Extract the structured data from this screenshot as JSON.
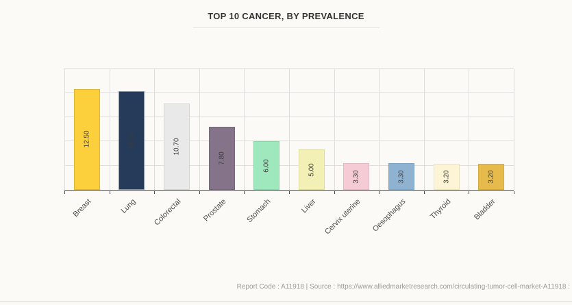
{
  "header": {
    "title": "TOP 10 CANCER, BY PREVALENCE"
  },
  "footer": {
    "text": "Report Code : A11918  |  Source : https://www.alliedmarketresearch.com/circulating-tumor-cell-market-A11918 :"
  },
  "colors": {
    "background": "#FBFAF6",
    "grid": "#DEDEDE",
    "axis": "#4A4A4A",
    "title_text": "#333333",
    "footer_text": "#9B9B9B"
  },
  "chart_data": {
    "type": "bar",
    "title": "TOP 10 CANCER, BY PREVALENCE",
    "xlabel": "",
    "ylabel": "",
    "categories": [
      "Breast",
      "Lung",
      "Colorectal",
      "Prostate",
      "Stomach",
      "Liver",
      "Cervix uterine",
      "Oesophagus",
      "Thyroid",
      "Bladder"
    ],
    "values": [
      12.5,
      12.2,
      10.7,
      7.8,
      6.0,
      5.0,
      3.3,
      3.3,
      3.2,
      3.2
    ],
    "value_labels": [
      "12.50",
      "12.20",
      "10.70",
      "7.80",
      "6.00",
      "5.00",
      "3.30",
      "3.30",
      "3.20",
      "3.20"
    ],
    "bar_colors": [
      "#FCD03C",
      "#263A59",
      "#E9E9E9",
      "#857389",
      "#9FE8BD",
      "#F2F0B4",
      "#F5CBD6",
      "#8FB2D1",
      "#FCF4D5",
      "#E6BB4B"
    ],
    "bar_border_colors": [
      "#DDB634",
      "#8593A9",
      "#D6D6D6",
      "#77667B",
      "#8CD3AA",
      "#DEDCA0",
      "#E3B9C4",
      "#7FA3C2",
      "#EAE2BF",
      "#D3A93F"
    ],
    "ylim": [
      0,
      15
    ],
    "y_gridlines": [
      3,
      6,
      9,
      12,
      15
    ],
    "grid": true,
    "legend": false,
    "value_label_position": "inside-center-rotated",
    "x_label_rotation_deg": -45
  }
}
